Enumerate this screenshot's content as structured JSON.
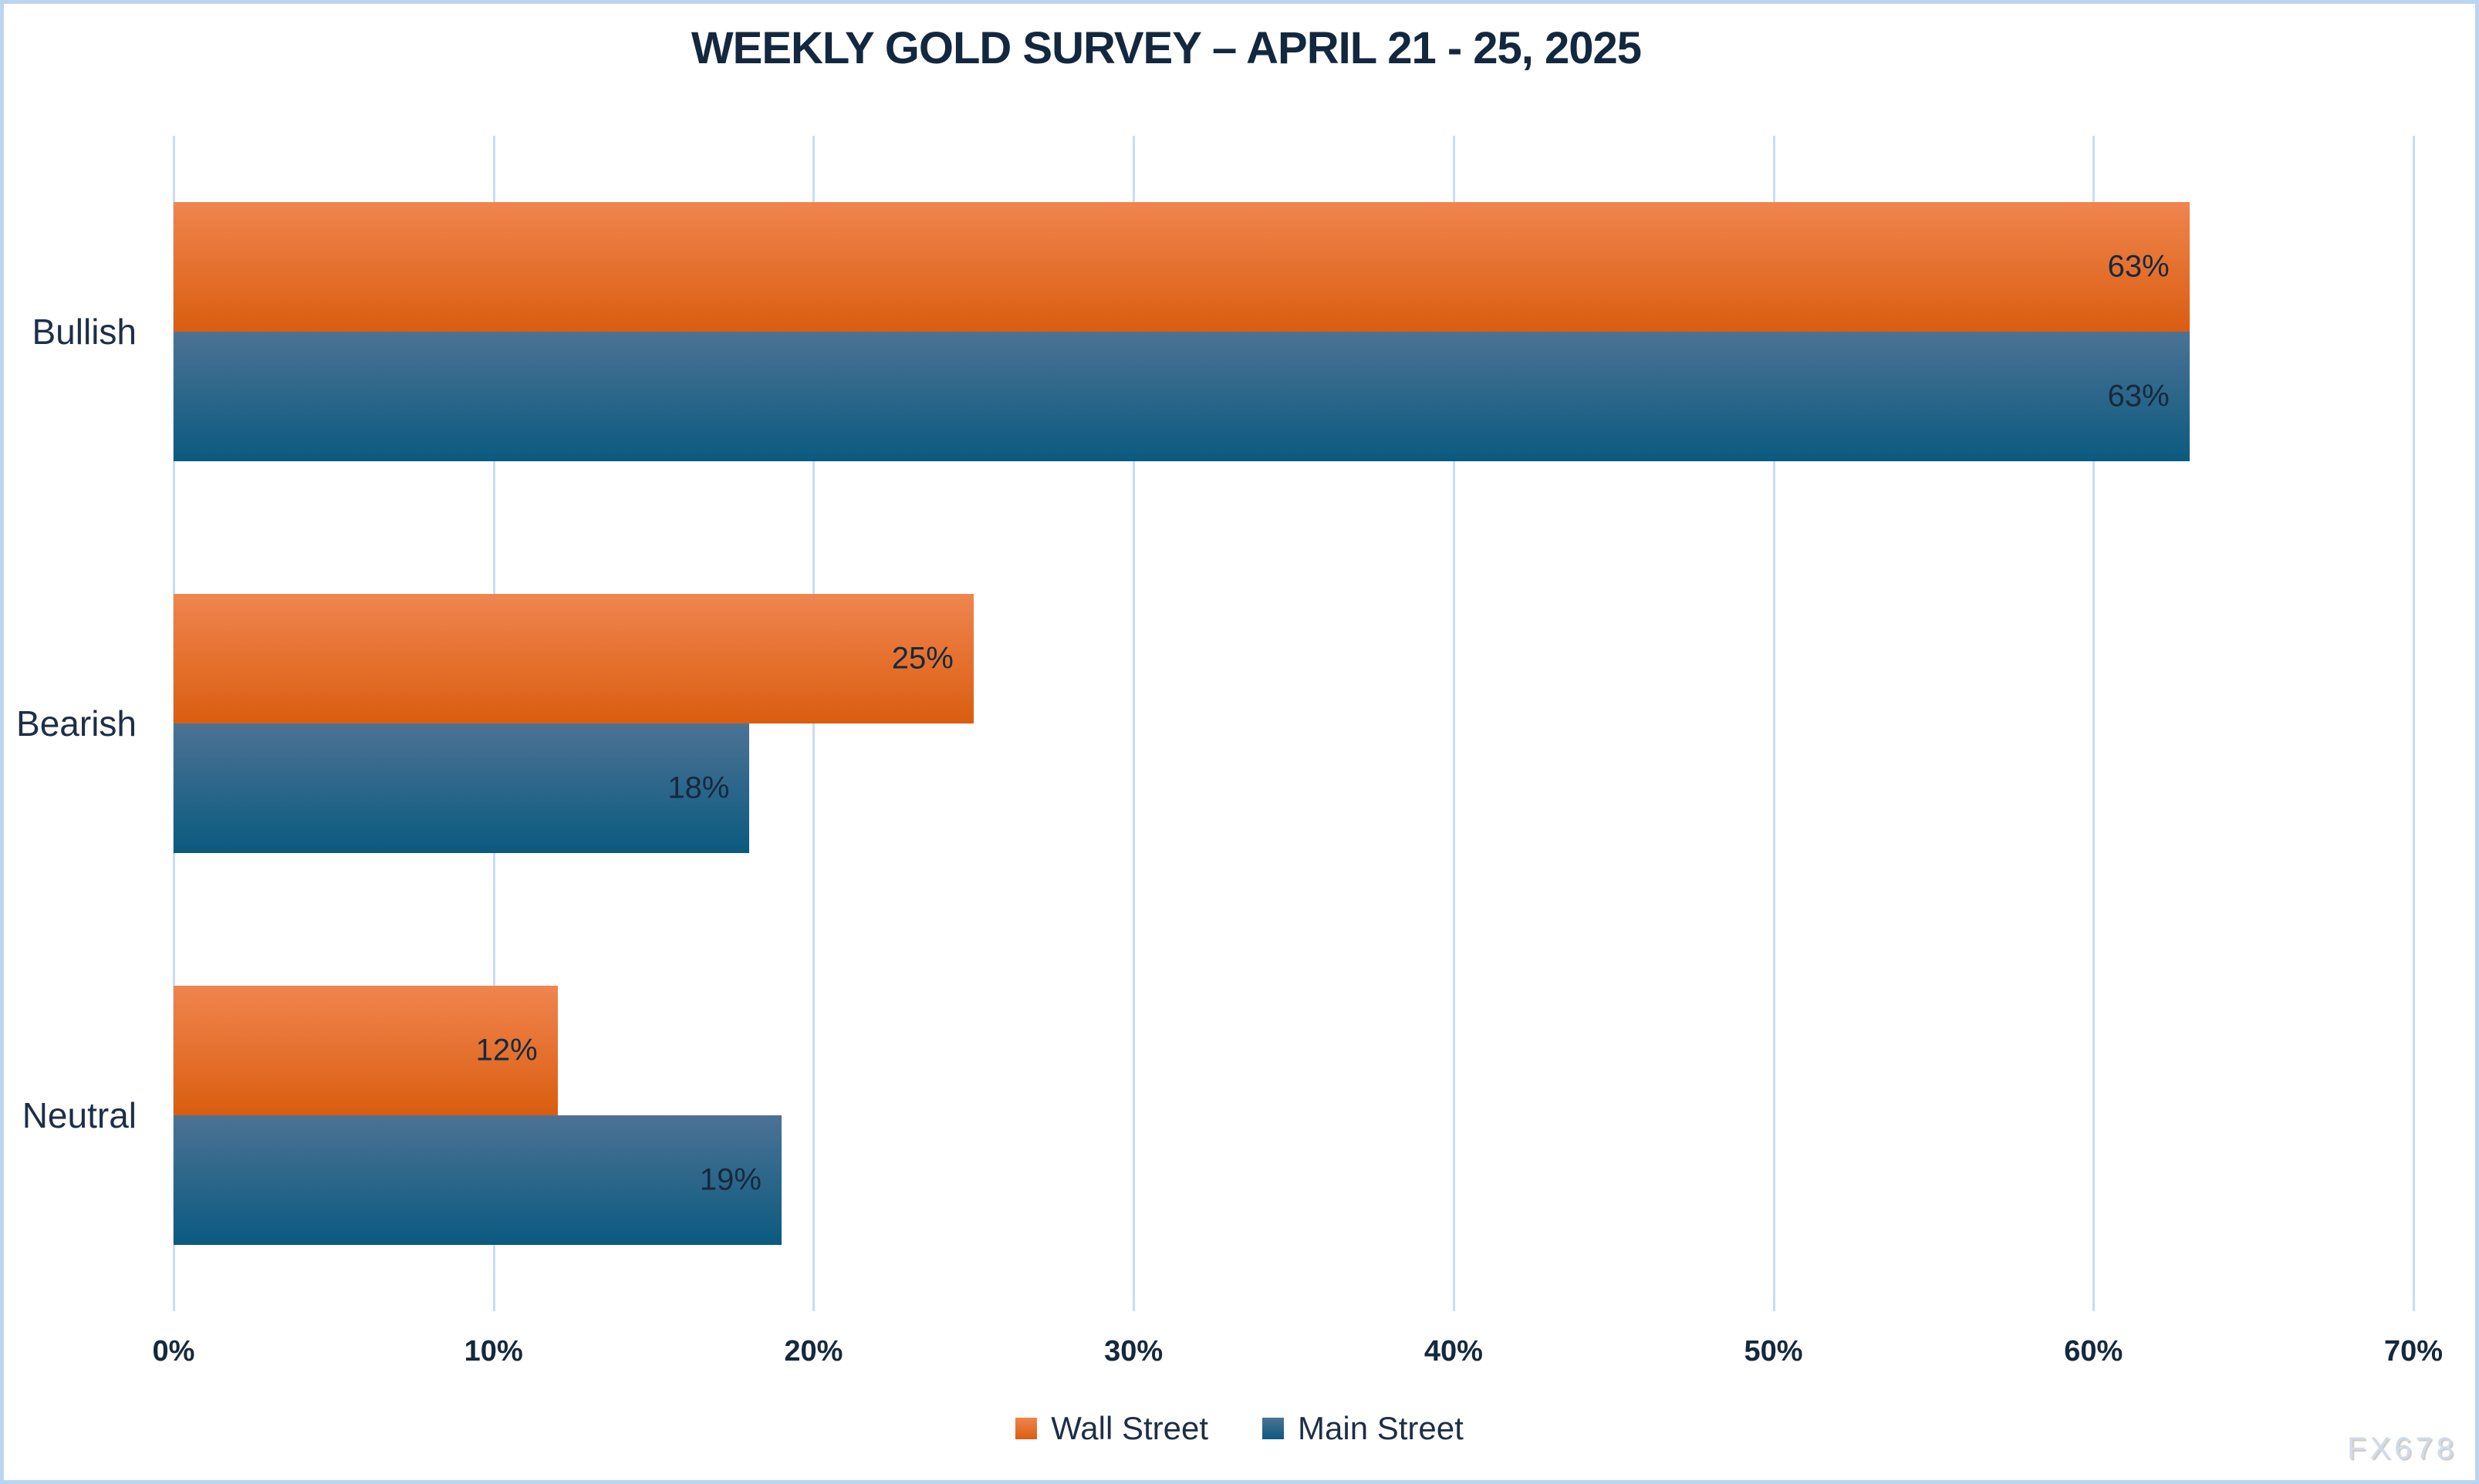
{
  "watermark": "FX678",
  "colors": {
    "background": "#ffffff",
    "frame_border": "#bcd5ee",
    "gridline": "#c9ddf2",
    "text_dark_navy": "#16293c",
    "wall_street_top": "#f0854f",
    "wall_street_bottom": "#da5d10",
    "main_street_top": "#4c7294",
    "main_street_bottom": "#0b5a80"
  },
  "chart_data": {
    "type": "bar",
    "orientation": "horizontal",
    "title": "WEEKLY GOLD SURVEY – APRIL 21 - 25, 2025",
    "categories": [
      "Bullish",
      "Bearish",
      "Neutral"
    ],
    "series": [
      {
        "name": "Wall Street",
        "values": [
          63,
          25,
          12
        ],
        "color_top": "#f0854f",
        "color_bottom": "#da5d10"
      },
      {
        "name": "Main Street",
        "values": [
          63,
          18,
          19
        ],
        "color_top": "#4c7294",
        "color_bottom": "#0b5a80"
      }
    ],
    "value_suffix": "%",
    "data_labels": [
      [
        "63%",
        "25%",
        "12%"
      ],
      [
        "63%",
        "18%",
        "19%"
      ]
    ],
    "xlabel": "",
    "ylabel": "",
    "xlim": [
      0,
      70
    ],
    "x_ticks": [
      "0%",
      "10%",
      "20%",
      "30%",
      "40%",
      "50%",
      "60%",
      "70%"
    ],
    "tick_step": 10,
    "grid": true,
    "legend_position": "bottom"
  }
}
